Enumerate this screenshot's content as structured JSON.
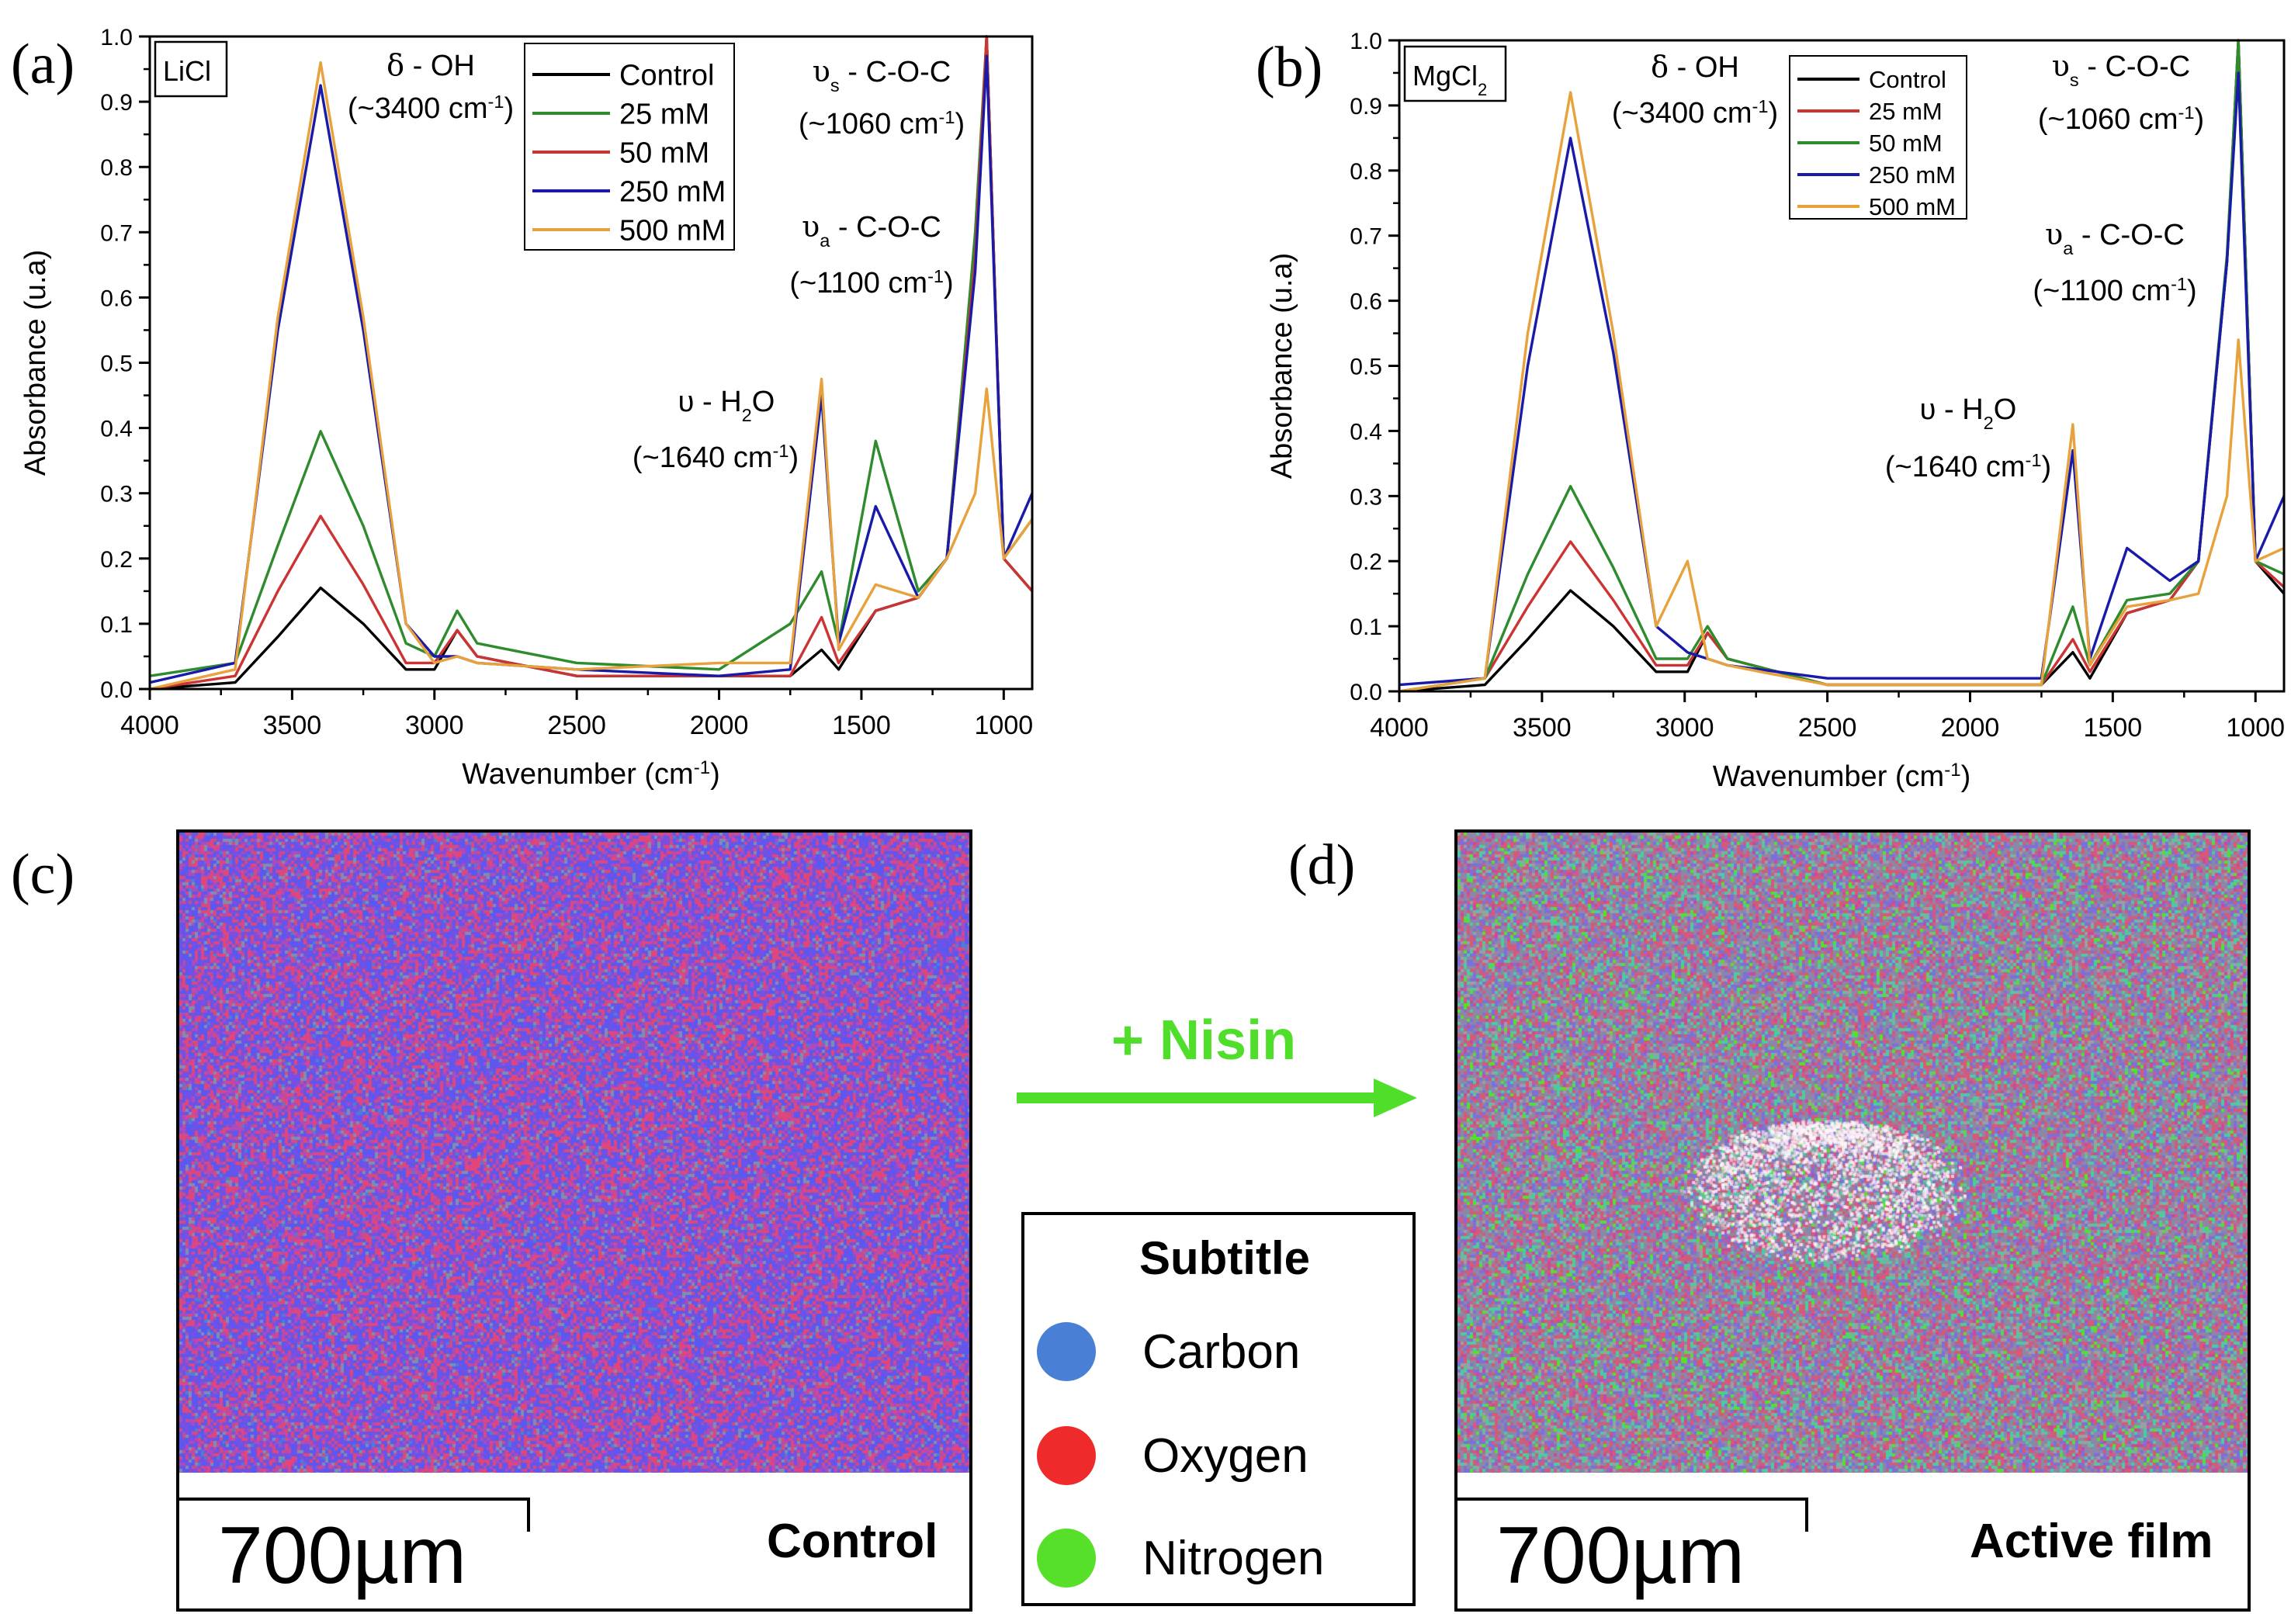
{
  "panels": {
    "a": {
      "letter": "(a)",
      "box_label": "LiCl"
    },
    "b": {
      "letter": "(b)",
      "box_label_base": "MgCl",
      "box_label_sub": "2"
    },
    "c": {
      "letter": "(c)",
      "map_label": "Control",
      "scale_label": "700µm"
    },
    "d": {
      "letter": "(d)",
      "map_label": "Active film",
      "scale_label": "700µm"
    }
  },
  "arrow": {
    "label": "+ Nisin",
    "color": "#4fdf2b"
  },
  "element_legend": {
    "title": "Subtitle",
    "items": [
      {
        "label": "Carbon",
        "color": "#4a7fd6"
      },
      {
        "label": "Oxygen",
        "color": "#ef2a2a"
      },
      {
        "label": "Nitrogen",
        "color": "#57e02a"
      }
    ]
  },
  "chart_data": [
    {
      "type": "line",
      "panel": "a",
      "xlabel": "Wavenumber (cm⁻¹)",
      "ylabel": "Absorbance (u.a)",
      "xlim": [
        4000,
        900
      ],
      "ylim": [
        0,
        1.0
      ],
      "xticks": [
        4000,
        3500,
        3000,
        2500,
        2000,
        1500,
        1000
      ],
      "yticks": [
        "0.0",
        "0.1",
        "0.2",
        "0.3",
        "0.4",
        "0.5",
        "0.6",
        "0.7",
        "0.8",
        "0.9",
        "1.0"
      ],
      "legend": [
        "Control",
        "25 mM",
        "50 mM",
        "250 mM",
        "500 mM"
      ],
      "annotations": [
        {
          "main": "δ - OH",
          "sub": "(~3400 cm⁻¹)"
        },
        {
          "main": "υs - C-O-C",
          "sub": "(~1060 cm⁻¹)"
        },
        {
          "main": "υa - C-O-C",
          "sub": "(~1100 cm⁻¹)"
        },
        {
          "main": "υ - H2O",
          "sub": "(~1640 cm⁻¹)"
        }
      ],
      "series": [
        {
          "name": "Control",
          "color": "#000000",
          "x": [
            4000,
            3700,
            3550,
            3400,
            3250,
            3100,
            3000,
            2920,
            2850,
            2500,
            2000,
            1750,
            1640,
            1580,
            1450,
            1300,
            1200,
            1100,
            1060,
            1000,
            900
          ],
          "y": [
            0.0,
            0.01,
            0.08,
            0.155,
            0.1,
            0.03,
            0.03,
            0.09,
            0.05,
            0.02,
            0.02,
            0.02,
            0.06,
            0.03,
            0.12,
            0.14,
            0.2,
            0.65,
            1.0,
            0.2,
            0.15
          ]
        },
        {
          "name": "25 mM",
          "color": "#2e8b2e",
          "x": [
            4000,
            3700,
            3550,
            3400,
            3250,
            3100,
            3000,
            2920,
            2850,
            2500,
            2000,
            1750,
            1640,
            1580,
            1450,
            1300,
            1200,
            1100,
            1060,
            1000,
            900
          ],
          "y": [
            0.02,
            0.04,
            0.22,
            0.395,
            0.25,
            0.07,
            0.05,
            0.12,
            0.07,
            0.04,
            0.03,
            0.1,
            0.18,
            0.07,
            0.38,
            0.15,
            0.2,
            0.7,
            1.0,
            0.2,
            0.26
          ]
        },
        {
          "name": "50 mM",
          "color": "#cc3333",
          "x": [
            4000,
            3700,
            3550,
            3400,
            3250,
            3100,
            3000,
            2920,
            2850,
            2500,
            2000,
            1750,
            1640,
            1580,
            1450,
            1300,
            1200,
            1100,
            1060,
            1000,
            900
          ],
          "y": [
            0.0,
            0.02,
            0.15,
            0.265,
            0.16,
            0.04,
            0.04,
            0.09,
            0.05,
            0.02,
            0.02,
            0.02,
            0.11,
            0.04,
            0.12,
            0.14,
            0.2,
            0.66,
            1.0,
            0.2,
            0.15
          ]
        },
        {
          "name": "250 mM",
          "color": "#1a1aa8",
          "x": [
            4000,
            3700,
            3550,
            3400,
            3250,
            3100,
            3000,
            2920,
            2850,
            2500,
            2000,
            1750,
            1640,
            1580,
            1450,
            1300,
            1200,
            1100,
            1060,
            1000,
            900
          ],
          "y": [
            0.01,
            0.04,
            0.55,
            0.925,
            0.55,
            0.1,
            0.05,
            0.05,
            0.04,
            0.03,
            0.02,
            0.03,
            0.45,
            0.07,
            0.28,
            0.14,
            0.2,
            0.64,
            0.97,
            0.2,
            0.3
          ]
        },
        {
          "name": "500 mM",
          "color": "#e8a23c",
          "x": [
            4000,
            3700,
            3550,
            3400,
            3250,
            3100,
            3000,
            2920,
            2850,
            2500,
            2000,
            1750,
            1640,
            1580,
            1450,
            1300,
            1200,
            1100,
            1060,
            1000,
            900
          ],
          "y": [
            0.0,
            0.03,
            0.57,
            0.96,
            0.57,
            0.1,
            0.04,
            0.05,
            0.04,
            0.03,
            0.04,
            0.04,
            0.475,
            0.06,
            0.16,
            0.14,
            0.2,
            0.3,
            0.46,
            0.2,
            0.26
          ]
        }
      ]
    },
    {
      "type": "line",
      "panel": "b",
      "xlabel": "Wavenumber (cm⁻¹)",
      "ylabel": "Absorbance (u.a)",
      "xlim": [
        4000,
        900
      ],
      "ylim": [
        0,
        1.0
      ],
      "xticks": [
        4000,
        3500,
        3000,
        2500,
        2000,
        1500,
        1000
      ],
      "yticks": [
        "0.0",
        "0.1",
        "0.2",
        "0.3",
        "0.4",
        "0.5",
        "0.6",
        "0.7",
        "0.8",
        "0.9",
        "1.0"
      ],
      "legend": [
        "Control",
        "25 mM",
        "50 mM",
        "250 mM",
        "500 mM"
      ],
      "annotations": [
        {
          "main": "δ - OH",
          "sub": "(~3400 cm⁻¹)"
        },
        {
          "main": "υs - C-O-C",
          "sub": "(~1060 cm⁻¹)"
        },
        {
          "main": "υa - C-O-C",
          "sub": "(~1100 cm⁻¹)"
        },
        {
          "main": "υ - H2O",
          "sub": "(~1640 cm⁻¹)"
        }
      ],
      "series": [
        {
          "name": "Control",
          "color": "#000000",
          "x": [
            4000,
            3700,
            3550,
            3400,
            3250,
            3100,
            2990,
            2920,
            2850,
            2500,
            2000,
            1750,
            1640,
            1580,
            1450,
            1300,
            1200,
            1100,
            1060,
            1000,
            900
          ],
          "y": [
            0.0,
            0.01,
            0.08,
            0.155,
            0.1,
            0.03,
            0.03,
            0.09,
            0.05,
            0.01,
            0.01,
            0.01,
            0.06,
            0.02,
            0.12,
            0.14,
            0.2,
            0.66,
            1.0,
            0.2,
            0.15
          ]
        },
        {
          "name": "25 mM",
          "color": "#cc3333",
          "x": [
            4000,
            3700,
            3550,
            3400,
            3250,
            3100,
            2990,
            2920,
            2850,
            2500,
            2000,
            1750,
            1640,
            1580,
            1450,
            1300,
            1200,
            1100,
            1060,
            1000,
            900
          ],
          "y": [
            0.0,
            0.02,
            0.13,
            0.23,
            0.14,
            0.04,
            0.04,
            0.09,
            0.05,
            0.01,
            0.01,
            0.01,
            0.08,
            0.03,
            0.12,
            0.14,
            0.2,
            0.66,
            1.0,
            0.2,
            0.16
          ]
        },
        {
          "name": "50 mM",
          "color": "#2e8b2e",
          "x": [
            4000,
            3700,
            3550,
            3400,
            3250,
            3100,
            2990,
            2920,
            2850,
            2500,
            2000,
            1750,
            1640,
            1580,
            1450,
            1300,
            1200,
            1100,
            1060,
            1000,
            900
          ],
          "y": [
            0.0,
            0.02,
            0.18,
            0.315,
            0.19,
            0.05,
            0.05,
            0.1,
            0.05,
            0.01,
            0.01,
            0.01,
            0.13,
            0.04,
            0.14,
            0.15,
            0.2,
            0.67,
            1.0,
            0.2,
            0.18
          ]
        },
        {
          "name": "250 mM",
          "color": "#1a1aa8",
          "x": [
            4000,
            3700,
            3550,
            3400,
            3250,
            3100,
            2990,
            2920,
            2850,
            2500,
            2000,
            1750,
            1640,
            1580,
            1450,
            1300,
            1200,
            1100,
            1060,
            1000,
            900
          ],
          "y": [
            0.01,
            0.02,
            0.5,
            0.85,
            0.52,
            0.1,
            0.06,
            0.05,
            0.04,
            0.02,
            0.02,
            0.02,
            0.37,
            0.05,
            0.22,
            0.17,
            0.2,
            0.66,
            0.95,
            0.2,
            0.3
          ]
        },
        {
          "name": "500 mM",
          "color": "#e8a23c",
          "x": [
            4000,
            3700,
            3550,
            3400,
            3250,
            3100,
            2990,
            2920,
            2850,
            2500,
            2000,
            1750,
            1640,
            1580,
            1450,
            1300,
            1200,
            1100,
            1060,
            1000,
            900
          ],
          "y": [
            0.0,
            0.02,
            0.55,
            0.92,
            0.55,
            0.1,
            0.2,
            0.05,
            0.04,
            0.01,
            0.01,
            0.01,
            0.41,
            0.04,
            0.13,
            0.14,
            0.15,
            0.3,
            0.54,
            0.2,
            0.22
          ]
        }
      ]
    }
  ]
}
